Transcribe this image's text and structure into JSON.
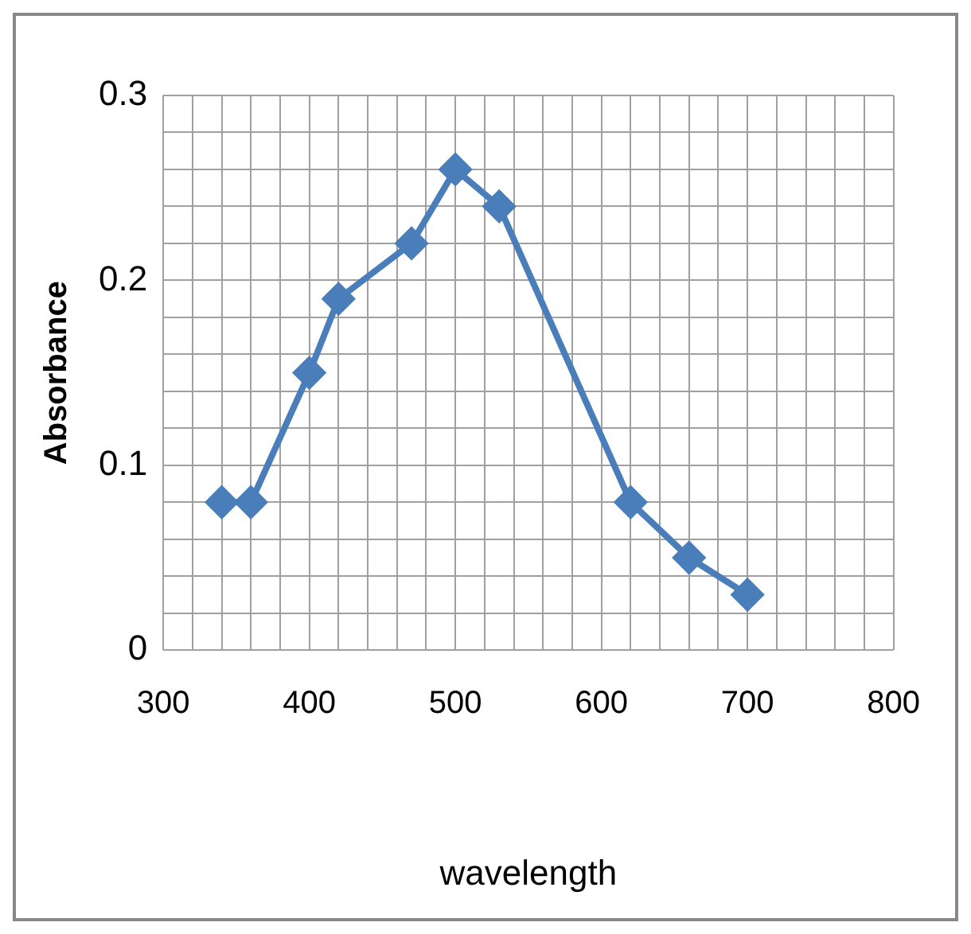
{
  "chart_data": {
    "type": "line",
    "xlabel": "wavelength",
    "ylabel": "Absorbance",
    "x": [
      340,
      360,
      400,
      420,
      470,
      500,
      530,
      620,
      660,
      700
    ],
    "series": [
      {
        "color": "#4a7ebb",
        "values": [
          0.08,
          0.08,
          0.15,
          0.19,
          0.22,
          0.26,
          0.24,
          0.08,
          0.05,
          0.03
        ]
      }
    ],
    "xlim": [
      300,
      800
    ],
    "xticks": [
      300,
      {
        "value": 320,
        "label": null
      },
      {
        "value": 340,
        "label": null
      },
      {
        "value": 360,
        "label": null
      },
      {
        "value": 380,
        "label": null
      },
      400,
      {
        "value": 420,
        "label": null
      },
      {
        "value": 440,
        "label": null
      },
      {
        "value": 460,
        "label": null
      },
      {
        "value": 480,
        "label": null
      },
      500,
      {
        "value": 520,
        "label": null
      },
      {
        "value": 540,
        "label": null
      },
      {
        "value": 560,
        "label": null
      },
      {
        "value": 580,
        "label": null
      },
      600,
      {
        "value": 620,
        "label": null
      },
      {
        "value": 640,
        "label": null
      },
      {
        "value": 660,
        "label": null
      },
      {
        "value": 680,
        "label": null
      },
      700,
      {
        "value": 720,
        "label": null
      },
      {
        "value": 740,
        "label": null
      },
      {
        "value": 760,
        "label": null
      },
      {
        "value": 780,
        "label": null
      },
      800
    ],
    "ylim": [
      0,
      0.3
    ],
    "yticks": [
      "0",
      {
        "value": 0.02,
        "label": null
      },
      {
        "value": 0.04,
        "label": null
      },
      {
        "value": 0.06,
        "label": null
      },
      {
        "value": 0.08,
        "label": null
      },
      0.1,
      {
        "value": 0.12,
        "label": null
      },
      {
        "value": 0.14,
        "label": null
      },
      {
        "value": 0.16,
        "label": null
      },
      {
        "value": 0.18,
        "label": null
      },
      0.2,
      {
        "value": 0.22,
        "label": null
      },
      {
        "value": 0.24,
        "label": null
      },
      {
        "value": 0.26,
        "label": null
      },
      {
        "value": 0.28,
        "label": null
      },
      0.3
    ],
    "grid": true,
    "marker": "diamond",
    "line_style": "solid",
    "legend": false
  }
}
